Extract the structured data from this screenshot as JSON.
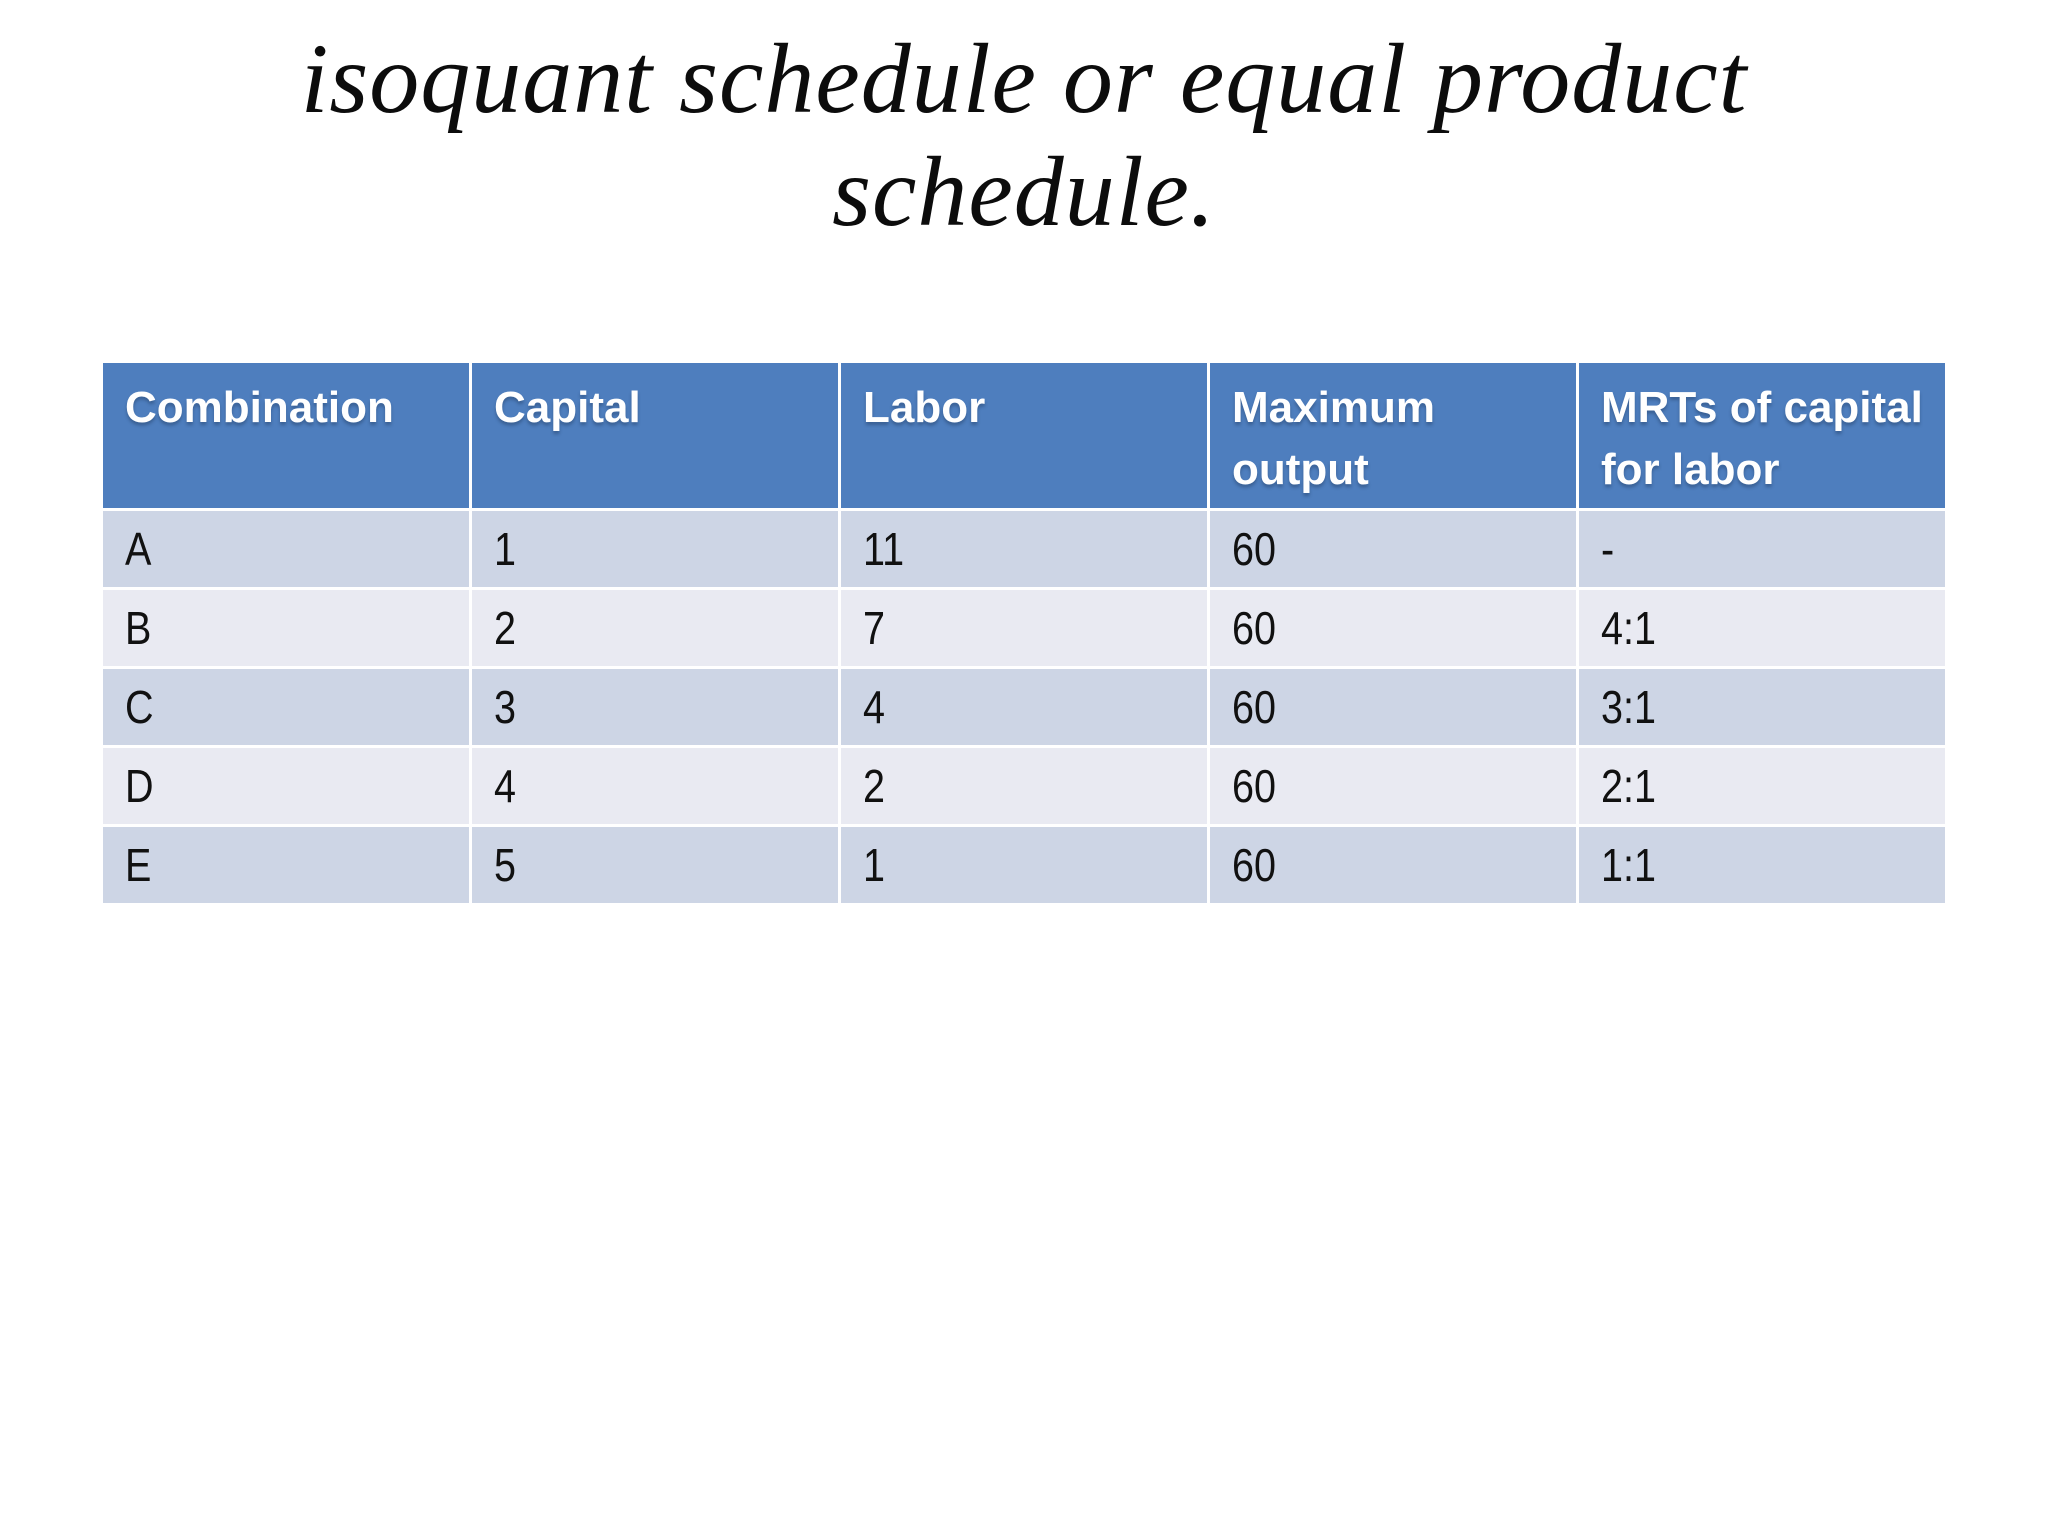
{
  "title": {
    "line1": "isoquant schedule or equal product",
    "line2": "schedule."
  },
  "table": {
    "headers": [
      "Combination",
      "Capital",
      "Labor",
      "Maximum output",
      "MRTs of capital for labor"
    ],
    "rows": [
      [
        "A",
        "1",
        "11",
        "60",
        "-"
      ],
      [
        "B",
        "2",
        "7",
        "60",
        "4:1"
      ],
      [
        "C",
        "3",
        "4",
        "60",
        "3:1"
      ],
      [
        "D",
        "4",
        "2",
        "60",
        "2:1"
      ],
      [
        "E",
        "5",
        "1",
        "60",
        "1:1"
      ]
    ]
  },
  "colors": {
    "header_bg": "#4e7ebe",
    "band_dark": "#cdd5e5",
    "band_light": "#e9eaf2",
    "header_text": "#ffffff",
    "body_text": "#111111"
  }
}
